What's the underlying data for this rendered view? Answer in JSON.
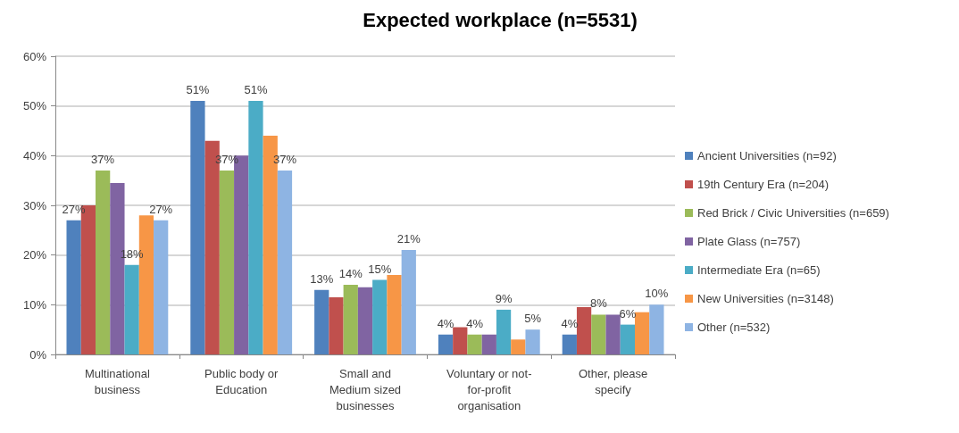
{
  "chart_data": {
    "type": "bar",
    "title": "Expected workplace (n=5531)",
    "categories": [
      "Multinational business",
      "Public body or Education",
      "Small and Medium sized businesses",
      "Voluntary or not-for-profit organisation",
      "Other, please specify"
    ],
    "series": [
      {
        "name": "Ancient Universities (n=92)",
        "color": "#4f81bd",
        "values": [
          27,
          51,
          13,
          4,
          4
        ],
        "value_labels": [
          "27%",
          "51%",
          "13%",
          "4%",
          "4%"
        ]
      },
      {
        "name": "19th Century Era (n=204)",
        "color": "#c0504d",
        "values": [
          30,
          43,
          11.5,
          5.5,
          9.5
        ]
      },
      {
        "name": "Red Brick / Civic Universities (n=659)",
        "color": "#9bbb59",
        "values": [
          37,
          37,
          14,
          4,
          8
        ],
        "value_labels": [
          "37%",
          "37%",
          "14%",
          "4%",
          "8%"
        ]
      },
      {
        "name": "Plate Glass (n=757)",
        "color": "#8064a2",
        "values": [
          34.5,
          40,
          13.5,
          4,
          8
        ]
      },
      {
        "name": "Intermediate Era (n=65)",
        "color": "#4bacc6",
        "values": [
          18,
          51,
          15,
          9,
          6
        ],
        "value_labels": [
          "18%",
          "51%",
          "15%",
          "9%",
          "6%"
        ]
      },
      {
        "name": "New Universities (n=3148)",
        "color": "#f79646",
        "values": [
          28,
          44,
          16,
          3,
          8.5
        ]
      },
      {
        "name": "Other (n=532)",
        "color": "#8eb4e3",
        "values": [
          27,
          37,
          21,
          5,
          10
        ],
        "value_labels": [
          "27%",
          "37%",
          "21%",
          "5%",
          "10%"
        ]
      }
    ],
    "ylim": [
      0,
      60
    ],
    "yticks": [
      {
        "value": 0,
        "label": "0%"
      },
      {
        "value": 10,
        "label": "10%"
      },
      {
        "value": 20,
        "label": "20%"
      },
      {
        "value": 30,
        "label": "30%"
      },
      {
        "value": 40,
        "label": "40%"
      },
      {
        "value": 50,
        "label": "50%"
      },
      {
        "value": 60,
        "label": "60%"
      }
    ],
    "grid": "y",
    "legend": "right"
  }
}
